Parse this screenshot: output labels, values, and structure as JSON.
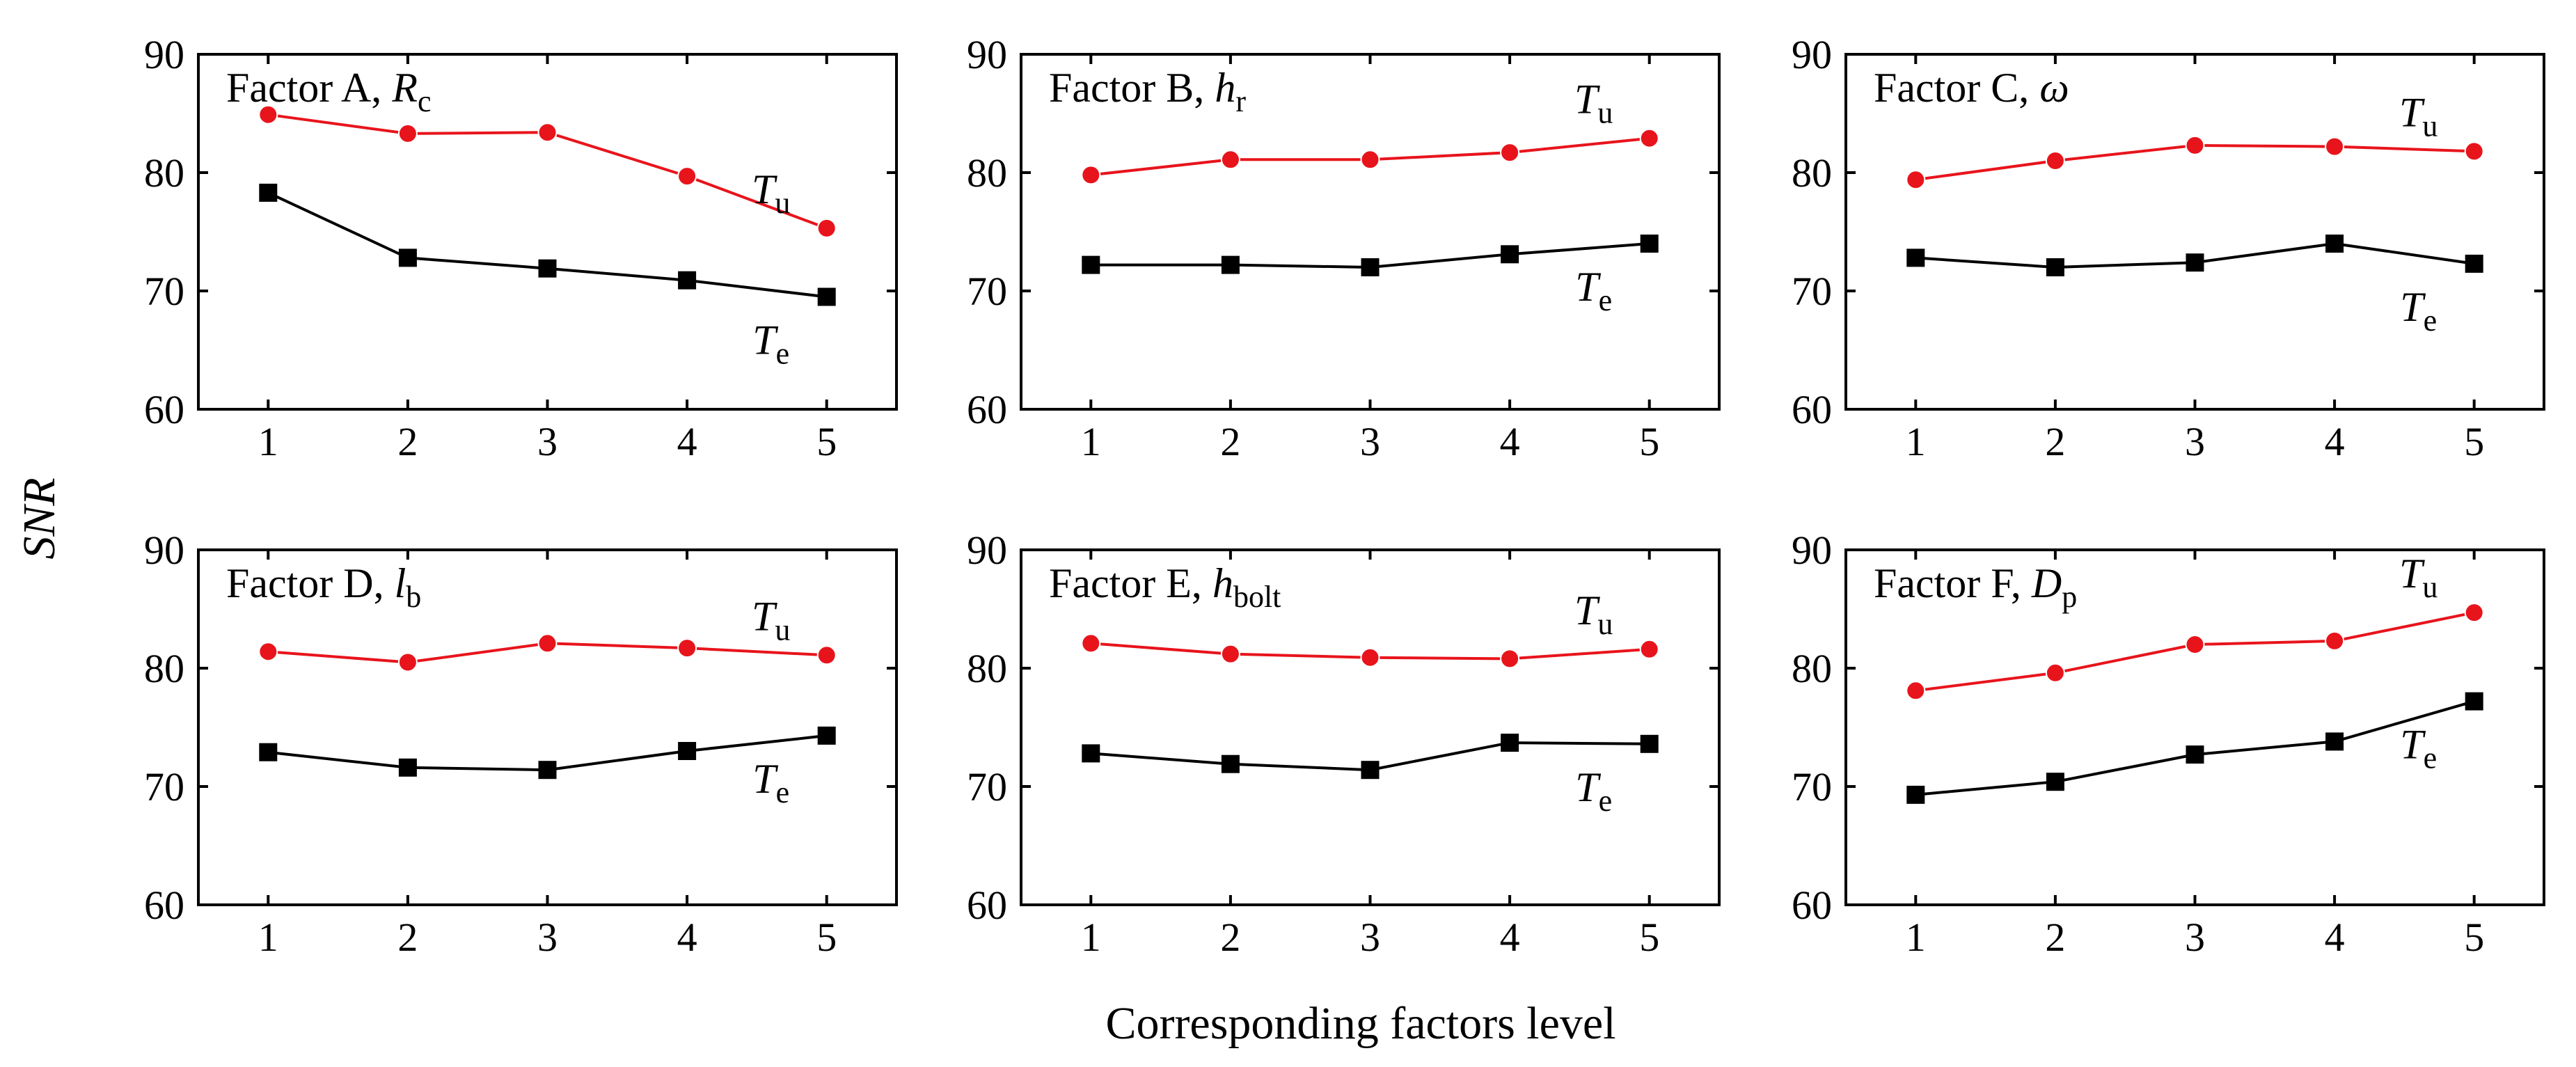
{
  "figure": {
    "ylabel": "SNR",
    "xlabel": "Corresponding factors level"
  },
  "colors": {
    "Tu": "#e8141c",
    "Te": "#000000",
    "axis": "#000000"
  },
  "chart_data": [
    {
      "type": "line",
      "panel_label": "Factor A, ",
      "symbol": "R",
      "symbol_sub": "c",
      "symbol_style": "italic",
      "x": [
        1,
        2,
        3,
        4,
        5
      ],
      "xlim": [
        0.5,
        5.5
      ],
      "ylim": [
        60,
        90
      ],
      "xticks": [
        "1",
        "2",
        "3",
        "4",
        "5"
      ],
      "yticks": [
        "60",
        "70",
        "80",
        "90"
      ],
      "series": [
        {
          "name": "Tu",
          "label": "T",
          "sub": "u",
          "values": [
            84.9,
            83.3,
            83.4,
            79.7,
            75.3
          ]
        },
        {
          "name": "Te",
          "label": "T",
          "sub": "e",
          "values": [
            78.3,
            72.8,
            71.9,
            70.9,
            69.5
          ]
        }
      ]
    },
    {
      "type": "line",
      "panel_label": "Factor B, ",
      "symbol": "h",
      "symbol_sub": "r",
      "symbol_style": "italic",
      "x": [
        1,
        2,
        3,
        4,
        5
      ],
      "xlim": [
        0.5,
        5.5
      ],
      "ylim": [
        60,
        90
      ],
      "xticks": [
        "1",
        "2",
        "3",
        "4",
        "5"
      ],
      "yticks": [
        "60",
        "70",
        "80",
        "90"
      ],
      "series": [
        {
          "name": "Tu",
          "label": "T",
          "sub": "u",
          "values": [
            79.8,
            81.1,
            81.1,
            81.7,
            82.9
          ]
        },
        {
          "name": "Te",
          "label": "T",
          "sub": "e",
          "values": [
            72.2,
            72.2,
            72.0,
            73.1,
            74.0
          ]
        }
      ]
    },
    {
      "type": "line",
      "panel_label": "Factor C, ",
      "symbol": "ω",
      "symbol_sub": "",
      "symbol_style": "italic",
      "x": [
        1,
        2,
        3,
        4,
        5
      ],
      "xlim": [
        0.5,
        5.5
      ],
      "ylim": [
        60,
        90
      ],
      "xticks": [
        "1",
        "2",
        "3",
        "4",
        "5"
      ],
      "yticks": [
        "60",
        "70",
        "80",
        "90"
      ],
      "series": [
        {
          "name": "Tu",
          "label": "T",
          "sub": "u",
          "values": [
            79.4,
            81.0,
            82.3,
            82.2,
            81.8
          ]
        },
        {
          "name": "Te",
          "label": "T",
          "sub": "e",
          "values": [
            72.8,
            72.0,
            72.4,
            74.0,
            72.3
          ]
        }
      ]
    },
    {
      "type": "line",
      "panel_label": "Factor D, ",
      "symbol": "l",
      "symbol_sub": "b",
      "symbol_style": "italic",
      "x": [
        1,
        2,
        3,
        4,
        5
      ],
      "xlim": [
        0.5,
        5.5
      ],
      "ylim": [
        60,
        90
      ],
      "xticks": [
        "1",
        "2",
        "3",
        "4",
        "5"
      ],
      "yticks": [
        "60",
        "70",
        "80",
        "90"
      ],
      "series": [
        {
          "name": "Tu",
          "label": "T",
          "sub": "u",
          "values": [
            81.4,
            80.5,
            82.1,
            81.7,
            81.1
          ]
        },
        {
          "name": "Te",
          "label": "T",
          "sub": "e",
          "values": [
            72.9,
            71.6,
            71.4,
            73.0,
            74.3
          ]
        }
      ]
    },
    {
      "type": "line",
      "panel_label": "Factor E, ",
      "symbol": "h",
      "symbol_sub": "bolt",
      "symbol_style": "italic",
      "x": [
        1,
        2,
        3,
        4,
        5
      ],
      "xlim": [
        0.5,
        5.5
      ],
      "ylim": [
        60,
        90
      ],
      "xticks": [
        "1",
        "2",
        "3",
        "4",
        "5"
      ],
      "yticks": [
        "60",
        "70",
        "80",
        "90"
      ],
      "series": [
        {
          "name": "Tu",
          "label": "T",
          "sub": "u",
          "values": [
            82.1,
            81.2,
            80.9,
            80.8,
            81.6
          ]
        },
        {
          "name": "Te",
          "label": "T",
          "sub": "e",
          "values": [
            72.8,
            71.9,
            71.4,
            73.7,
            73.6
          ]
        }
      ]
    },
    {
      "type": "line",
      "panel_label": "Factor F, ",
      "symbol": "D",
      "symbol_sub": "p",
      "symbol_style": "italic",
      "x": [
        1,
        2,
        3,
        4,
        5
      ],
      "xlim": [
        0.5,
        5.5
      ],
      "ylim": [
        60,
        90
      ],
      "xticks": [
        "1",
        "2",
        "3",
        "4",
        "5"
      ],
      "yticks": [
        "60",
        "70",
        "80",
        "90"
      ],
      "series": [
        {
          "name": "Tu",
          "label": "T",
          "sub": "u",
          "values": [
            78.1,
            79.6,
            82.0,
            82.3,
            84.7
          ]
        },
        {
          "name": "Te",
          "label": "T",
          "sub": "e",
          "values": [
            69.3,
            70.4,
            72.7,
            73.8,
            77.2
          ]
        }
      ]
    }
  ]
}
